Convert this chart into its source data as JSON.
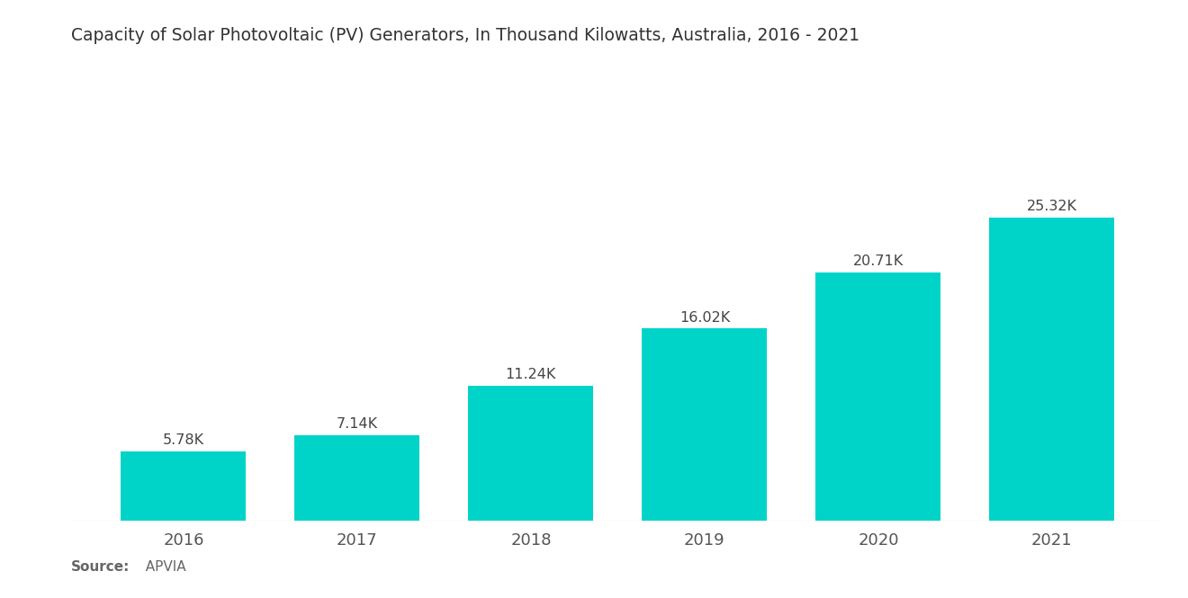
{
  "title": "Capacity of Solar Photovoltaic (PV) Generators, In Thousand Kilowatts, Australia, 2016 - 2021",
  "categories": [
    "2016",
    "2017",
    "2018",
    "2019",
    "2020",
    "2021"
  ],
  "values": [
    5.78,
    7.14,
    11.24,
    16.02,
    20.71,
    25.32
  ],
  "labels": [
    "5.78K",
    "7.14K",
    "11.24K",
    "16.02K",
    "20.71K",
    "25.32K"
  ],
  "bar_color": "#00D4C8",
  "background_color": "#ffffff",
  "title_fontsize": 13.5,
  "label_fontsize": 11.5,
  "tick_fontsize": 13,
  "source_label_bold": "Source:",
  "source_label_normal": "  APVIA",
  "ylim": [
    0,
    30
  ],
  "source_color": "#666666",
  "title_color": "#333333",
  "tick_color": "#555555",
  "label_color": "#444444"
}
